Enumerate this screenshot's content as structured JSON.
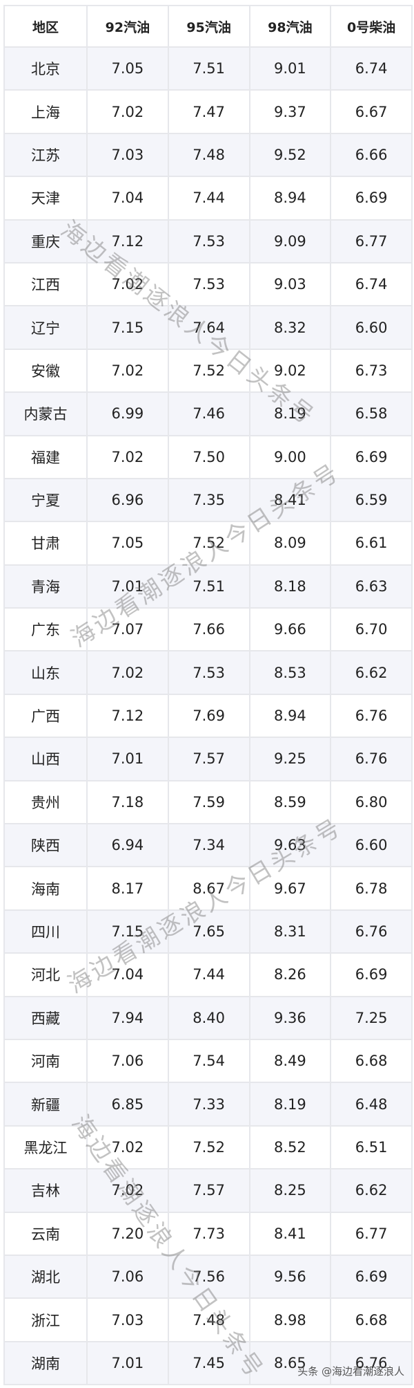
{
  "table": {
    "headers": [
      "地区",
      "92汽油",
      "95汽油",
      "98汽油",
      "0号柴油"
    ],
    "rows": [
      [
        "北京",
        "7.05",
        "7.51",
        "9.01",
        "6.74"
      ],
      [
        "上海",
        "7.02",
        "7.47",
        "9.37",
        "6.67"
      ],
      [
        "江苏",
        "7.03",
        "7.48",
        "9.52",
        "6.66"
      ],
      [
        "天津",
        "7.04",
        "7.44",
        "8.94",
        "6.69"
      ],
      [
        "重庆",
        "7.12",
        "7.53",
        "9.09",
        "6.77"
      ],
      [
        "江西",
        "7.02",
        "7.53",
        "9.03",
        "6.74"
      ],
      [
        "辽宁",
        "7.15",
        "7.64",
        "8.32",
        "6.60"
      ],
      [
        "安徽",
        "7.02",
        "7.52",
        "9.02",
        "6.73"
      ],
      [
        "内蒙古",
        "6.99",
        "7.46",
        "8.19",
        "6.58"
      ],
      [
        "福建",
        "7.02",
        "7.50",
        "9.00",
        "6.69"
      ],
      [
        "宁夏",
        "6.96",
        "7.35",
        "8.41",
        "6.59"
      ],
      [
        "甘肃",
        "7.05",
        "7.52",
        "8.09",
        "6.61"
      ],
      [
        "青海",
        "7.01",
        "7.51",
        "8.18",
        "6.63"
      ],
      [
        "广东",
        "7.07",
        "7.66",
        "9.66",
        "6.70"
      ],
      [
        "山东",
        "7.02",
        "7.53",
        "8.53",
        "6.62"
      ],
      [
        "广西",
        "7.12",
        "7.69",
        "8.94",
        "6.76"
      ],
      [
        "山西",
        "7.01",
        "7.57",
        "9.25",
        "6.76"
      ],
      [
        "贵州",
        "7.18",
        "7.59",
        "8.59",
        "6.80"
      ],
      [
        "陕西",
        "6.94",
        "7.34",
        "9.63",
        "6.60"
      ],
      [
        "海南",
        "8.17",
        "8.67",
        "9.67",
        "6.78"
      ],
      [
        "四川",
        "7.15",
        "7.65",
        "8.31",
        "6.76"
      ],
      [
        "河北",
        "7.04",
        "7.44",
        "8.26",
        "6.69"
      ],
      [
        "西藏",
        "7.94",
        "8.40",
        "9.36",
        "7.25"
      ],
      [
        "河南",
        "7.06",
        "7.54",
        "8.49",
        "6.68"
      ],
      [
        "新疆",
        "6.85",
        "7.33",
        "8.19",
        "6.48"
      ],
      [
        "黑龙江",
        "7.02",
        "7.52",
        "8.52",
        "6.51"
      ],
      [
        "吉林",
        "7.02",
        "7.57",
        "8.25",
        "6.62"
      ],
      [
        "云南",
        "7.20",
        "7.73",
        "8.41",
        "6.77"
      ],
      [
        "湖北",
        "7.06",
        "7.56",
        "9.56",
        "6.69"
      ],
      [
        "浙江",
        "7.03",
        "7.48",
        "8.98",
        "6.68"
      ],
      [
        "湖南",
        "7.01",
        "7.45",
        "8.65",
        "6.76"
      ]
    ]
  },
  "watermark": "海边看潮逐浪人今日头条号",
  "credit": "头条 @海边看潮逐浪人"
}
